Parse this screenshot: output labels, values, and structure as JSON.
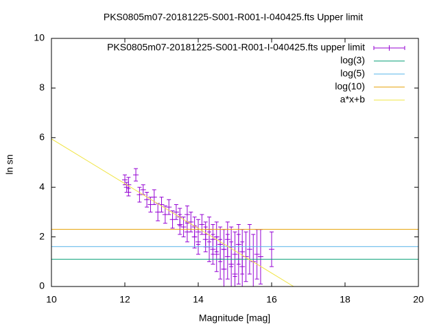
{
  "chart_data": {
    "type": "scatter",
    "title": "PKS0805m07-20181225-S001-R001-I-040425.fts Upper limit",
    "x_label": "Magnitude [mag]",
    "y_label": "ln sn",
    "xlim": [
      10,
      20
    ],
    "ylim": [
      0,
      10
    ],
    "xticks": [
      10,
      12,
      14,
      16,
      18,
      20
    ],
    "yticks": [
      0,
      2,
      4,
      6,
      8,
      10
    ],
    "legend": "top-right",
    "series": [
      {
        "name": "PKS0805m07-20181225-S001-R001-I-040425.fts upper limit",
        "color": "#9400d3",
        "kind": "errorbar",
        "x": [
          12.0,
          12.05,
          12.1,
          12.1,
          12.3,
          12.4,
          12.5,
          12.6,
          12.7,
          12.8,
          12.9,
          13.0,
          13.1,
          13.2,
          13.3,
          13.4,
          13.5,
          13.5,
          13.6,
          13.7,
          13.7,
          13.8,
          13.9,
          13.9,
          14.0,
          14.0,
          14.1,
          14.2,
          14.2,
          14.3,
          14.3,
          14.4,
          14.4,
          14.5,
          14.5,
          14.6,
          14.6,
          14.7,
          14.7,
          14.8,
          14.8,
          14.9,
          14.9,
          15.0,
          15.0,
          15.1,
          15.1,
          15.2,
          15.2,
          15.3,
          15.4,
          15.5,
          15.6,
          15.7,
          16.0
        ],
        "values": [
          4.3,
          4.0,
          3.8,
          4.1,
          4.5,
          3.7,
          3.9,
          3.5,
          3.3,
          3.6,
          3.0,
          3.3,
          2.9,
          3.2,
          2.7,
          3.0,
          2.8,
          2.5,
          2.4,
          2.9,
          2.2,
          2.6,
          2.0,
          2.4,
          2.2,
          1.8,
          2.5,
          1.9,
          2.1,
          1.6,
          2.3,
          1.5,
          1.9,
          1.3,
          2.0,
          1.7,
          1.1,
          1.5,
          0.7,
          1.9,
          1.2,
          0.9,
          1.6,
          1.3,
          0.5,
          1.1,
          1.7,
          0.8,
          1.4,
          1.2,
          1.5,
          1.0,
          1.3,
          1.2,
          1.5
        ],
        "errors": [
          0.2,
          0.2,
          0.15,
          0.3,
          0.25,
          0.3,
          0.2,
          0.3,
          0.3,
          0.3,
          0.35,
          0.3,
          0.35,
          0.3,
          0.35,
          0.3,
          0.35,
          0.4,
          0.4,
          0.35,
          0.4,
          0.4,
          0.45,
          0.4,
          0.5,
          0.5,
          0.4,
          0.5,
          0.5,
          0.6,
          0.5,
          0.6,
          0.6,
          0.7,
          0.6,
          0.7,
          0.8,
          0.8,
          0.8,
          0.7,
          0.9,
          0.9,
          0.8,
          0.9,
          0.8,
          1.0,
          0.8,
          1.0,
          0.9,
          1.0,
          1.0,
          1.1,
          1.0,
          1.1,
          0.7
        ]
      },
      {
        "name": "log(3)",
        "color": "#009e73",
        "kind": "line",
        "x": [
          10,
          20
        ],
        "values": [
          1.0986,
          1.0986
        ]
      },
      {
        "name": "log(5)",
        "color": "#56b4e9",
        "kind": "line",
        "x": [
          10,
          20
        ],
        "values": [
          1.6094,
          1.6094
        ]
      },
      {
        "name": "log(10)",
        "color": "#e69f00",
        "kind": "line",
        "x": [
          10,
          20
        ],
        "values": [
          2.3026,
          2.3026
        ]
      },
      {
        "name": "a*x+b",
        "color": "#f0e442",
        "kind": "line",
        "x": [
          10,
          16.6
        ],
        "values": [
          5.95,
          0
        ]
      }
    ]
  }
}
